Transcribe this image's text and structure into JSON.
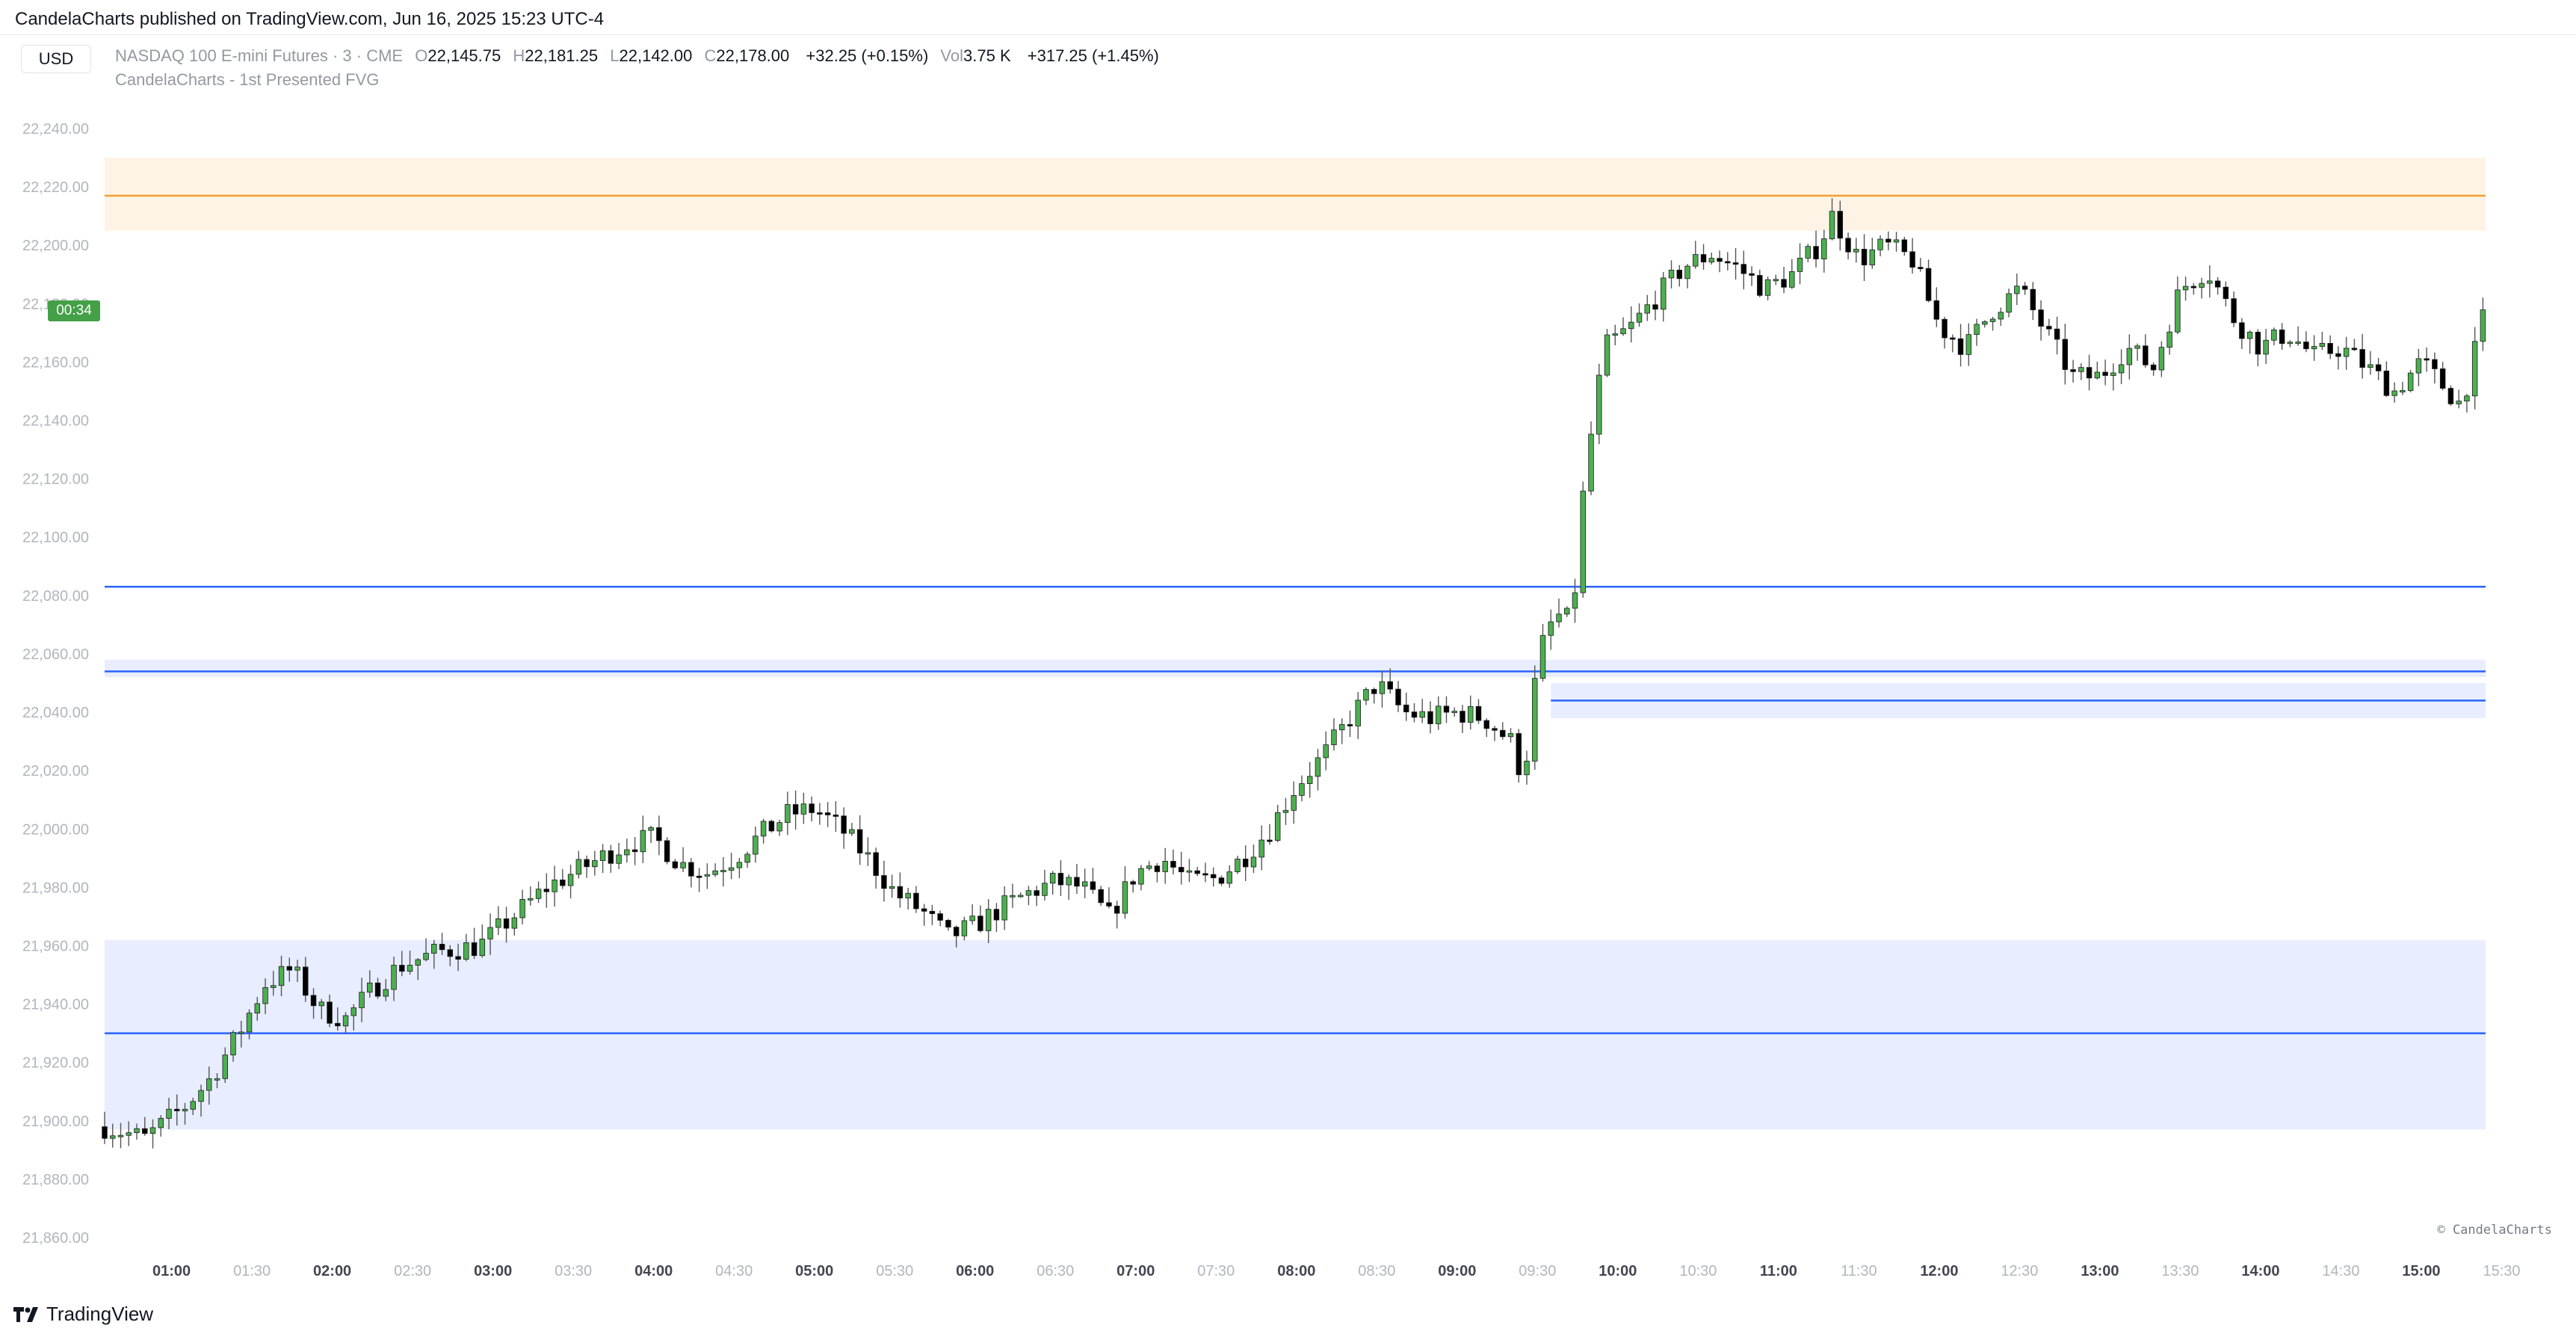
{
  "header": {
    "publish_line": "CandelaCharts published on TradingView.com, Jun 16, 2025 15:23 UTC-4"
  },
  "toolbar": {
    "currency_label": "USD"
  },
  "legend": {
    "symbol": "NASDAQ 100 E-mini Futures · 3 · CME",
    "open_label": "O",
    "open": "22,145.75",
    "high_label": "H",
    "high": "22,181.25",
    "low_label": "L",
    "low": "22,142.00",
    "close_label": "C",
    "close": "22,178.00",
    "change": "+32.25 (+0.15%)",
    "vol_label": "Vol",
    "vol": "3.75 K",
    "session_change": "+317.25 (+1.45%)",
    "indicator": "CandelaCharts - 1st Presented FVG"
  },
  "price_scale": {
    "countdown": "00:34"
  },
  "footer": {
    "copyright": "© CandelaCharts",
    "brand": "TradingView"
  },
  "chart_data": {
    "type": "candlestick",
    "ylim": [
      21855,
      22245
    ],
    "yticks": [
      21860,
      21880,
      21900,
      21920,
      21940,
      21960,
      21980,
      22000,
      22020,
      22040,
      22060,
      22080,
      22100,
      22120,
      22140,
      22160,
      22180,
      22200,
      22220,
      22240
    ],
    "ytick_labels": [
      "21,860.00",
      "21,880.00",
      "21,900.00",
      "21,920.00",
      "21,940.00",
      "21,960.00",
      "21,980.00",
      "22,000.00",
      "22,020.00",
      "22,040.00",
      "22,060.00",
      "22,080.00",
      "22,100.00",
      "22,120.00",
      "22,140.00",
      "22,160.00",
      "22,180.00",
      "22,200.00",
      "22,220.00",
      "22,240.00"
    ],
    "x_start": "00:35",
    "x_end": "15:24",
    "xtick_labels": [
      "01:00",
      "01:30",
      "02:00",
      "02:30",
      "03:00",
      "03:30",
      "04:00",
      "04:30",
      "05:00",
      "05:30",
      "06:00",
      "06:30",
      "07:00",
      "07:30",
      "08:00",
      "08:30",
      "09:00",
      "09:30",
      "10:00",
      "10:30",
      "11:00",
      "11:30",
      "12:00",
      "12:30",
      "13:00",
      "13:30",
      "14:00",
      "14:30",
      "15:00",
      "15:30"
    ],
    "xtick_bold": [
      true,
      false,
      true,
      false,
      true,
      false,
      true,
      false,
      true,
      false,
      true,
      false,
      true,
      false,
      true,
      false,
      true,
      false,
      true,
      false,
      true,
      false,
      true,
      false,
      true,
      false,
      true,
      false,
      true,
      false
    ],
    "path_points": [
      [
        "00:35",
        21898
      ],
      [
        "00:50",
        21894
      ],
      [
        "01:05",
        21905
      ],
      [
        "01:15",
        21915
      ],
      [
        "01:25",
        21930
      ],
      [
        "01:35",
        21947
      ],
      [
        "01:45",
        21952
      ],
      [
        "01:55",
        21938
      ],
      [
        "02:05",
        21935
      ],
      [
        "02:15",
        21945
      ],
      [
        "02:25",
        21953
      ],
      [
        "02:40",
        21958
      ],
      [
        "02:55",
        21960
      ],
      [
        "03:10",
        21972
      ],
      [
        "03:20",
        21980
      ],
      [
        "03:30",
        21985
      ],
      [
        "03:40",
        21990
      ],
      [
        "03:50",
        21995
      ],
      [
        "04:00",
        21997
      ],
      [
        "04:10",
        21988
      ],
      [
        "04:20",
        21985
      ],
      [
        "04:30",
        21990
      ],
      [
        "04:40",
        21998
      ],
      [
        "04:50",
        22005
      ],
      [
        "05:00",
        22007
      ],
      [
        "05:10",
        22000
      ],
      [
        "05:20",
        21990
      ],
      [
        "05:30",
        21978
      ],
      [
        "05:40",
        21972
      ],
      [
        "05:50",
        21963
      ],
      [
        "06:00",
        21967
      ],
      [
        "06:10",
        21973
      ],
      [
        "06:20",
        21978
      ],
      [
        "06:30",
        21982
      ],
      [
        "06:40",
        21980
      ],
      [
        "06:50",
        21970
      ],
      [
        "07:00",
        21985
      ],
      [
        "07:10",
        21990
      ],
      [
        "07:20",
        21982
      ],
      [
        "07:30",
        21983
      ],
      [
        "07:40",
        21990
      ],
      [
        "07:50",
        22000
      ],
      [
        "08:00",
        22015
      ],
      [
        "08:10",
        22025
      ],
      [
        "08:20",
        22038
      ],
      [
        "08:30",
        22050
      ],
      [
        "08:40",
        22040
      ],
      [
        "08:50",
        22038
      ],
      [
        "09:00",
        22040
      ],
      [
        "09:10",
        22038
      ],
      [
        "09:20",
        22030
      ],
      [
        "09:25",
        22016
      ],
      [
        "09:28",
        22045
      ],
      [
        "09:33",
        22068
      ],
      [
        "09:40",
        22075
      ],
      [
        "09:43",
        22065
      ],
      [
        "09:45",
        22100
      ],
      [
        "09:50",
        22135
      ],
      [
        "09:55",
        22165
      ],
      [
        "10:05",
        22172
      ],
      [
        "10:15",
        22183
      ],
      [
        "10:25",
        22193
      ],
      [
        "10:35",
        22197
      ],
      [
        "10:45",
        22192
      ],
      [
        "10:55",
        22185
      ],
      [
        "11:05",
        22190
      ],
      [
        "11:15",
        22200
      ],
      [
        "11:20",
        22210
      ],
      [
        "11:30",
        22195
      ],
      [
        "11:40",
        22200
      ],
      [
        "11:50",
        22195
      ],
      [
        "12:00",
        22172
      ],
      [
        "12:10",
        22165
      ],
      [
        "12:20",
        22178
      ],
      [
        "12:30",
        22185
      ],
      [
        "12:40",
        22170
      ],
      [
        "12:50",
        22155
      ],
      [
        "13:00",
        22155
      ],
      [
        "13:10",
        22165
      ],
      [
        "13:20",
        22158
      ],
      [
        "13:30",
        22185
      ],
      [
        "13:40",
        22192
      ],
      [
        "13:50",
        22175
      ],
      [
        "14:00",
        22165
      ],
      [
        "14:10",
        22170
      ],
      [
        "14:20",
        22162
      ],
      [
        "14:30",
        22165
      ],
      [
        "14:40",
        22158
      ],
      [
        "14:50",
        22150
      ],
      [
        "15:00",
        22160
      ],
      [
        "15:10",
        22150
      ],
      [
        "15:15",
        22145
      ],
      [
        "15:24",
        22178
      ]
    ],
    "fvg_zones": [
      {
        "top": 22230,
        "bottom": 22205,
        "fill": "#fff3e6",
        "line": 22217,
        "line_color": "#f0a030",
        "x_from": "00:35"
      },
      {
        "top": 21962,
        "bottom": 21897,
        "fill": "#e8edff",
        "line": 21930,
        "line_color": "#2962ff",
        "x_from": "00:35"
      },
      {
        "top": 22058,
        "bottom": 22052,
        "fill": "#e8edff",
        "line": 22054,
        "line_color": "#2962ff",
        "x_from": "00:35"
      },
      {
        "top": 22050,
        "bottom": 22038,
        "fill": "#e8edff",
        "line": 22044,
        "line_color": "#2962ff",
        "x_from": "09:35"
      }
    ],
    "levels": [
      {
        "value": 22083,
        "color": "#2962ff",
        "x_from": "00:35"
      }
    ],
    "colors": {
      "up": "#4caf50",
      "down": "#000000",
      "wick": "#555555",
      "tick": "#b2b5be"
    }
  }
}
